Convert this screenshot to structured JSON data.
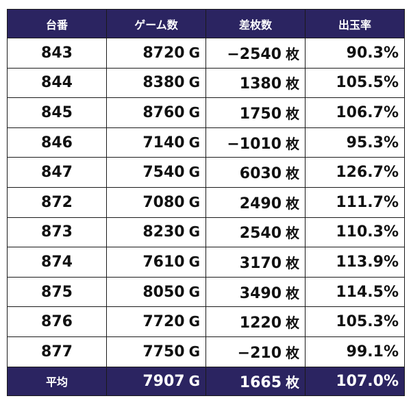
{
  "headers": {
    "machine": "台番",
    "games": "ゲーム数",
    "diff": "差枚数",
    "payout": "出玉率"
  },
  "units": {
    "games": "G",
    "diff": "枚"
  },
  "rows": [
    {
      "machine": "843",
      "games": "8720",
      "diff": "−2540",
      "payout": "90.3%"
    },
    {
      "machine": "844",
      "games": "8380",
      "diff": "1380",
      "payout": "105.5%"
    },
    {
      "machine": "845",
      "games": "8760",
      "diff": "1750",
      "payout": "106.7%"
    },
    {
      "machine": "846",
      "games": "7140",
      "diff": "−1010",
      "payout": "95.3%"
    },
    {
      "machine": "847",
      "games": "7540",
      "diff": "6030",
      "payout": "126.7%"
    },
    {
      "machine": "872",
      "games": "7080",
      "diff": "2490",
      "payout": "111.7%"
    },
    {
      "machine": "873",
      "games": "8230",
      "diff": "2540",
      "payout": "110.3%"
    },
    {
      "machine": "874",
      "games": "7610",
      "diff": "3170",
      "payout": "113.9%"
    },
    {
      "machine": "875",
      "games": "8050",
      "diff": "3490",
      "payout": "114.5%"
    },
    {
      "machine": "876",
      "games": "7720",
      "diff": "1220",
      "payout": "105.3%"
    },
    {
      "machine": "877",
      "games": "7750",
      "diff": "−210",
      "payout": "99.1%"
    }
  ],
  "footer": {
    "label": "平均",
    "games": "7907",
    "diff": "1665",
    "payout": "107.0%"
  },
  "colors": {
    "header_bg": "#2b2461",
    "header_text": "#ffffff",
    "border": "#1a1a1a"
  }
}
